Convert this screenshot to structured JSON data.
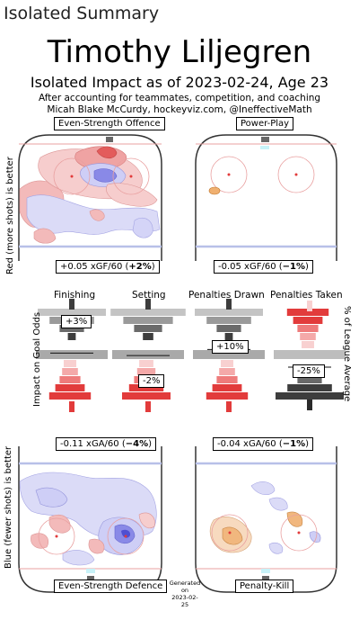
{
  "header": {
    "title": "Isolated Summary"
  },
  "player": {
    "name": "Timothy Liljegren",
    "subtitle": "Isolated Impact as of 2023-02-24, Age 23",
    "credit_line1": "After accounting for teammates, competition, and coaching",
    "credit_line2": "Micah Blake McCurdy, hockeyviz.com, @IneffectiveMath"
  },
  "panels": {
    "ev_offence": {
      "title": "Even-Strength Offence",
      "value": "+0.05 xGF/60 (",
      "pct": "+2%",
      "close": ")"
    },
    "power_play": {
      "title": "Power-Play",
      "value": "-0.05 xGF/60 (",
      "pct": "−1%",
      "close": ")"
    },
    "ev_defence": {
      "title": "Even-Strength Defence",
      "value": "-0.11 xGA/60 (",
      "pct": "−4%",
      "close": ")"
    },
    "penalty_kill": {
      "title": "Penalty-Kill",
      "value": "-0.04 xGA/60 (",
      "pct": "−1%",
      "close": ")"
    }
  },
  "side_labels": {
    "top": "Red (more shots) is better",
    "middle_left": "Impact on Goal Odds",
    "middle_right": "% of League Average",
    "bottom": "Blue (fewer shots) is better"
  },
  "generated": {
    "line1": "Generated",
    "line2": "on",
    "line3": "2023-02-25"
  },
  "colors": {
    "red": "#e23b3b",
    "blue": "#4a4ae0",
    "rink_red": "#e9a0a0",
    "rink_blue": "#b8c0e8",
    "grey_dark": "#555555",
    "grey_light": "#bdbdbd"
  },
  "chart_data": {
    "type": "bar",
    "title": "",
    "categories": [
      "Finishing",
      "Setting",
      "Penalties Drawn",
      "Penalties Taken"
    ],
    "values": [
      3,
      -2,
      10,
      -25
    ],
    "labels": [
      "+3%",
      "-2%",
      "+10%",
      "-25%"
    ],
    "ylabel": "Impact on Goal Odds",
    "y2label": "% of League Average",
    "ylim": [
      -100,
      100
    ]
  }
}
